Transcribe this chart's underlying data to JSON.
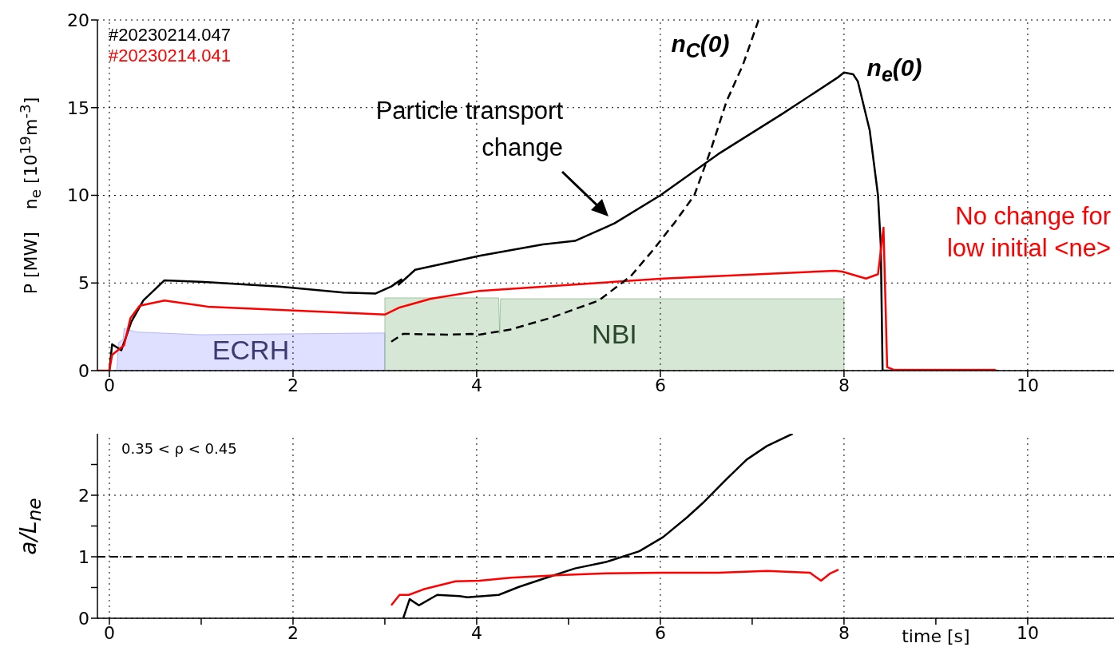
{
  "chart_data": [
    {
      "type": "line",
      "ylabel": "P [MW]    n$_{e}$ [10$^{19}$m$^{-3}$]",
      "xlim": [
        -0.13,
        10.94
      ],
      "xticks": [
        0,
        2,
        4,
        6,
        8,
        10
      ],
      "ylim": [
        0,
        20
      ],
      "yticks": [
        0,
        5,
        10,
        15,
        20
      ],
      "grid": true,
      "legend": "top left",
      "annotations": [
        "n$_{C}$(0)",
        "n$_{e}$(0)",
        "Particle transport change",
        "No change for low initial <ne>"
      ],
      "series": [
        {
          "name": "#20230214.047",
          "color": "#000000",
          "x": [
            0,
            0.03,
            0.13,
            0.24,
            0.37,
            0.6,
            1.07,
            1.85,
            2.55,
            2.9,
            3.07,
            3.18,
            3.15,
            3.33,
            4.03,
            4.72,
            5.07,
            5.5,
            6.0,
            6.63,
            7.33,
            7.94,
            8.0,
            8.1,
            8.15,
            8.28,
            8.37,
            8.4,
            8.42,
            9.67
          ],
          "values": [
            0,
            1.5,
            1.16,
            2.8,
            4.0,
            5.15,
            5.05,
            4.8,
            4.45,
            4.4,
            4.8,
            5.2,
            4.9,
            5.75,
            6.55,
            7.2,
            7.4,
            8.4,
            10.0,
            12.35,
            14.65,
            16.75,
            17.0,
            16.9,
            16.5,
            13.7,
            10.0,
            7.2,
            0,
            0
          ]
        },
        {
          "name": "#20230214.041",
          "color": "#ff0000",
          "x": [
            -0.13,
            0,
            0.03,
            0.16,
            0.23,
            0.33,
            0.6,
            1.07,
            3.0,
            3.16,
            3.5,
            4.03,
            6.03,
            7.9,
            7.98,
            8.24,
            8.37,
            8.43,
            8.47,
            8.54,
            9.65
          ],
          "values": [
            0,
            0,
            0.9,
            1.45,
            3.0,
            3.7,
            4.0,
            3.65,
            3.2,
            3.6,
            4.1,
            4.55,
            5.25,
            5.7,
            5.65,
            5.25,
            5.5,
            8.15,
            0.2,
            0.05,
            0.05
          ]
        },
        {
          "color": "#000000",
          "line_style": "dashed",
          "x": [
            3.07,
            3.2,
            3.68,
            3.94,
            4.03,
            4.37,
            4.8,
            5.33,
            5.68,
            5.94,
            6.11,
            6.15,
            6.37,
            6.55,
            6.72,
            6.9,
            7.07
          ],
          "values": [
            1.65,
            2.1,
            2.05,
            2.1,
            2.05,
            2.35,
            3.0,
            4.0,
            5.4,
            7.0,
            8.15,
            8.4,
            10.0,
            12.6,
            15.35,
            17.45,
            20.0
          ]
        },
        {
          "type": "area",
          "name": "ECRH",
          "color": "#8080ff",
          "x": [
            0.08,
            0.1,
            0.15,
            0.16,
            0.3,
            1,
            2,
            3.0,
            3.0
          ],
          "values": [
            0,
            1.6,
            1.8,
            2.4,
            2.2,
            2.05,
            2.1,
            2.15,
            0
          ]
        },
        {
          "type": "area",
          "name": "NBI",
          "color": "#5aa05a",
          "x": [
            3.0,
            3.0,
            4.24,
            4.25,
            4.26,
            4.3,
            8.0,
            8.0
          ],
          "values": [
            0,
            4.15,
            4.15,
            2.1,
            4.1,
            4.1,
            4.1,
            0
          ]
        }
      ]
    },
    {
      "type": "line",
      "ylabel": "a/L$_{ne}$",
      "xlabel": "time [s]",
      "xlim": [
        -0.13,
        10.94
      ],
      "xticks": [
        0,
        {
          "value": 1,
          "label": null
        },
        2,
        {
          "value": 3,
          "label": null
        },
        4,
        {
          "value": 5,
          "label": null
        },
        6,
        {
          "value": 7,
          "label": null
        },
        8,
        {
          "value": 9,
          "label": null
        },
        10
      ],
      "ylim": [
        0,
        3
      ],
      "yticks": [
        0,
        {
          "value": 0.5,
          "label": null
        },
        1,
        {
          "value": 1.5,
          "label": null
        },
        2,
        {
          "value": 2.5,
          "label": null
        }
      ],
      "grid": true,
      "annotations": [
        "0.35 < ρ < 0.45"
      ],
      "ref_lines": [
        {
          "axis": "y",
          "value": 1,
          "color": "#000000",
          "line_style": "dashed"
        }
      ],
      "series": [
        {
          "color": "#000000",
          "x": [
            3.2,
            3.27,
            3.37,
            3.57,
            3.81,
            3.9,
            4.07,
            4.24,
            4.46,
            4.72,
            5.07,
            5.42,
            5.77,
            6.03,
            6.29,
            6.46,
            6.72,
            6.94,
            7.16,
            7.44
          ],
          "values": [
            0,
            0.31,
            0.21,
            0.38,
            0.36,
            0.34,
            0.36,
            0.38,
            0.51,
            0.64,
            0.81,
            0.92,
            1.09,
            1.32,
            1.64,
            1.87,
            2.26,
            2.58,
            2.8,
            3.0
          ]
        },
        {
          "color": "#ff0000",
          "x": [
            3.07,
            3.16,
            3.26,
            3.42,
            3.77,
            4.03,
            4.37,
            4.9,
            5.42,
            6.0,
            6.63,
            7.16,
            7.63,
            7.75,
            7.85,
            7.94
          ],
          "values": [
            0.21,
            0.38,
            0.38,
            0.47,
            0.6,
            0.61,
            0.66,
            0.7,
            0.73,
            0.74,
            0.74,
            0.77,
            0.74,
            0.61,
            0.73,
            0.79
          ]
        }
      ]
    }
  ]
}
